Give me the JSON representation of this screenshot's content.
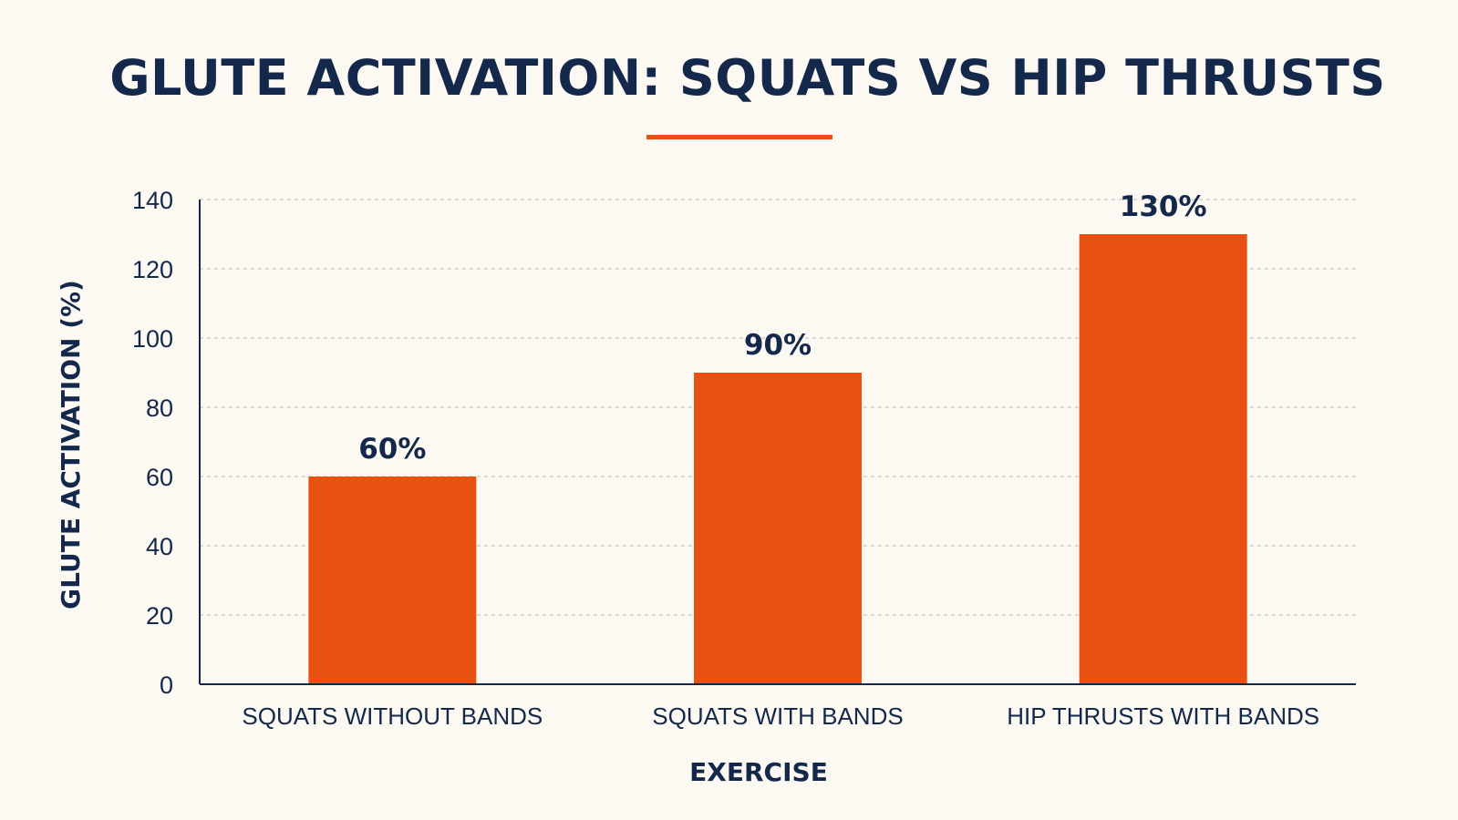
{
  "chart_data": {
    "type": "bar",
    "title": "GLUTE ACTIVATION: SQUATS VS HIP THRUSTS",
    "xlabel": "EXERCISE",
    "ylabel": "GLUTE ACTIVATION (%)",
    "categories": [
      "SQUATS WITHOUT BANDS",
      "SQUATS WITH BANDS",
      "HIP THRUSTS WITH BANDS"
    ],
    "values": [
      60,
      90,
      130
    ],
    "data_labels": [
      "60%",
      "90%",
      "130%"
    ],
    "ylim": [
      0,
      140
    ],
    "yticks": [
      0,
      20,
      40,
      60,
      80,
      100,
      120,
      140
    ],
    "grid": true,
    "legend": "none",
    "colors": {
      "bar": "#e85112",
      "accent_rule": "#e85112",
      "text": "#14284b",
      "grid": "#b9b9b5",
      "background": "#fcf9f2"
    }
  }
}
